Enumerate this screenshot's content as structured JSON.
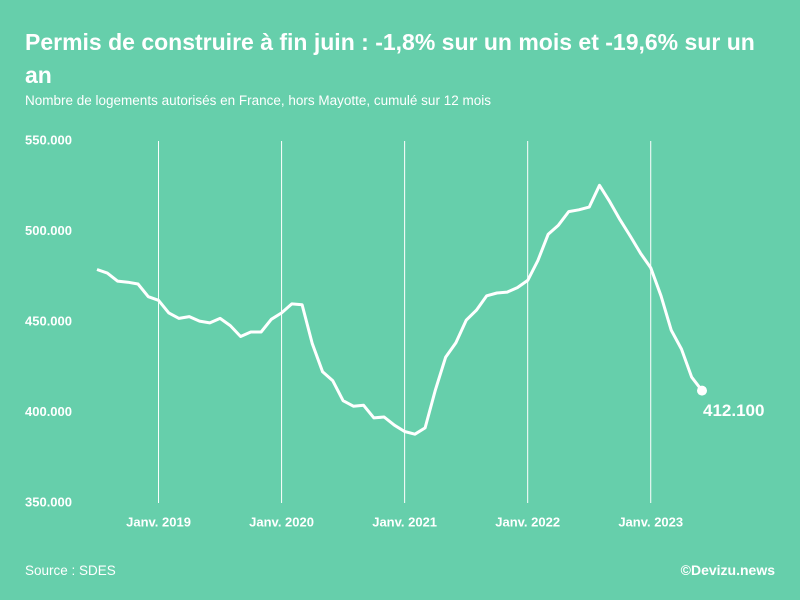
{
  "chart_data": {
    "type": "line",
    "title": "Permis de construire à fin juin : -1,8% sur un mois et -19,6% sur un an",
    "subtitle": "Nombre de logements autorisés en France, hors Mayotte, cumulé sur 12 mois",
    "source": "Source : SDES",
    "credit": "©Devizu.news",
    "categories": [
      null,
      null,
      null,
      null,
      null,
      null,
      "Janv. 2019",
      null,
      null,
      null,
      null,
      null,
      null,
      null,
      null,
      null,
      null,
      null,
      "Janv. 2020",
      null,
      null,
      null,
      null,
      null,
      null,
      null,
      null,
      null,
      null,
      null,
      "Janv. 2021",
      null,
      null,
      null,
      null,
      null,
      null,
      null,
      null,
      null,
      null,
      null,
      "Janv. 2022",
      null,
      null,
      null,
      null,
      null,
      null,
      null,
      null,
      null,
      null,
      null,
      "Janv. 2023",
      null,
      null,
      null,
      null,
      null
    ],
    "values": [
      479000,
      477000,
      472600,
      472000,
      471000,
      464000,
      462000,
      455000,
      452000,
      453000,
      450500,
      449500,
      452000,
      448000,
      442000,
      444500,
      444500,
      451500,
      455000,
      460000,
      459500,
      438000,
      422500,
      417500,
      406500,
      403500,
      404000,
      397000,
      397500,
      393000,
      389500,
      388000,
      391500,
      412500,
      430500,
      438500,
      451000,
      456500,
      464500,
      466000,
      466500,
      469000,
      473000,
      484000,
      498500,
      503500,
      511000,
      512000,
      513500,
      525500,
      516500,
      506500,
      497500,
      488000,
      480000,
      464500,
      445500,
      435000,
      419500,
      412100
    ],
    "value_labels": [
      null,
      null,
      null,
      null,
      null,
      null,
      null,
      null,
      null,
      null,
      null,
      null,
      null,
      null,
      null,
      null,
      null,
      null,
      null,
      null,
      null,
      null,
      null,
      null,
      null,
      null,
      null,
      null,
      null,
      null,
      null,
      null,
      null,
      null,
      null,
      null,
      null,
      null,
      null,
      null,
      null,
      null,
      null,
      null,
      null,
      null,
      null,
      null,
      null,
      null,
      null,
      null,
      null,
      null,
      null,
      null,
      null,
      null,
      null,
      "412.100"
    ],
    "color": "#ffffff",
    "ylim": [
      350000,
      550000
    ],
    "yticks": [
      {
        "value": 350000,
        "label": "350.000"
      },
      {
        "value": 400000,
        "label": "400.000"
      },
      {
        "value": 450000,
        "label": "450.000"
      },
      {
        "value": 500000,
        "label": "500.000"
      },
      {
        "value": 550000,
        "label": "550.000"
      }
    ],
    "grid": true
  }
}
